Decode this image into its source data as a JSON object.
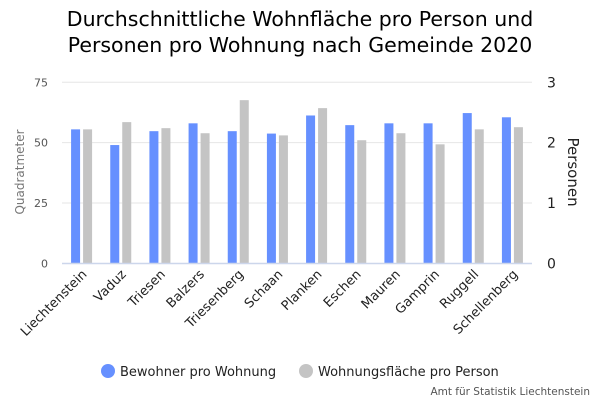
{
  "chart_data": {
    "type": "bar",
    "title": "Durchschnittliche Wohnfläche pro Person und Personen pro Wohnung nach Gemeinde 2020",
    "title_lines": [
      "Durchschnittliche Wohnfläche pro Person und",
      "Personen pro Wohnung nach Gemeinde 2020"
    ],
    "categories": [
      "Liechtenstein",
      "Vaduz",
      "Triesen",
      "Balzers",
      "Triesenberg",
      "Schaan",
      "Planken",
      "Eschen",
      "Mauren",
      "Gamprin",
      "Ruggell",
      "Schellenberg"
    ],
    "series": [
      {
        "name": "Bewohner pro Wohnung",
        "axis": "right",
        "color": "#6690ff",
        "values": [
          2.22,
          1.96,
          2.19,
          2.32,
          2.19,
          2.15,
          2.45,
          2.29,
          2.32,
          2.32,
          2.49,
          2.42
        ]
      },
      {
        "name": "Wohnungsfläche pro Person",
        "axis": "left",
        "color": "#c4c4c4",
        "values": [
          55.5,
          58.5,
          56.0,
          53.9,
          67.6,
          53.0,
          64.3,
          51.0,
          53.9,
          49.3,
          55.5,
          56.4
        ]
      }
    ],
    "left_axis": {
      "label": "Quadratmeter",
      "range": [
        0,
        75
      ],
      "ticks": [
        "0",
        "25",
        "50",
        "75"
      ]
    },
    "right_axis": {
      "label": "Personen",
      "range": [
        0,
        3
      ],
      "ticks": [
        "0",
        "1",
        "2",
        "3"
      ]
    },
    "grid": true,
    "legend_position": "bottom-center",
    "source": "Amt für Statistik Liechtenstein"
  }
}
